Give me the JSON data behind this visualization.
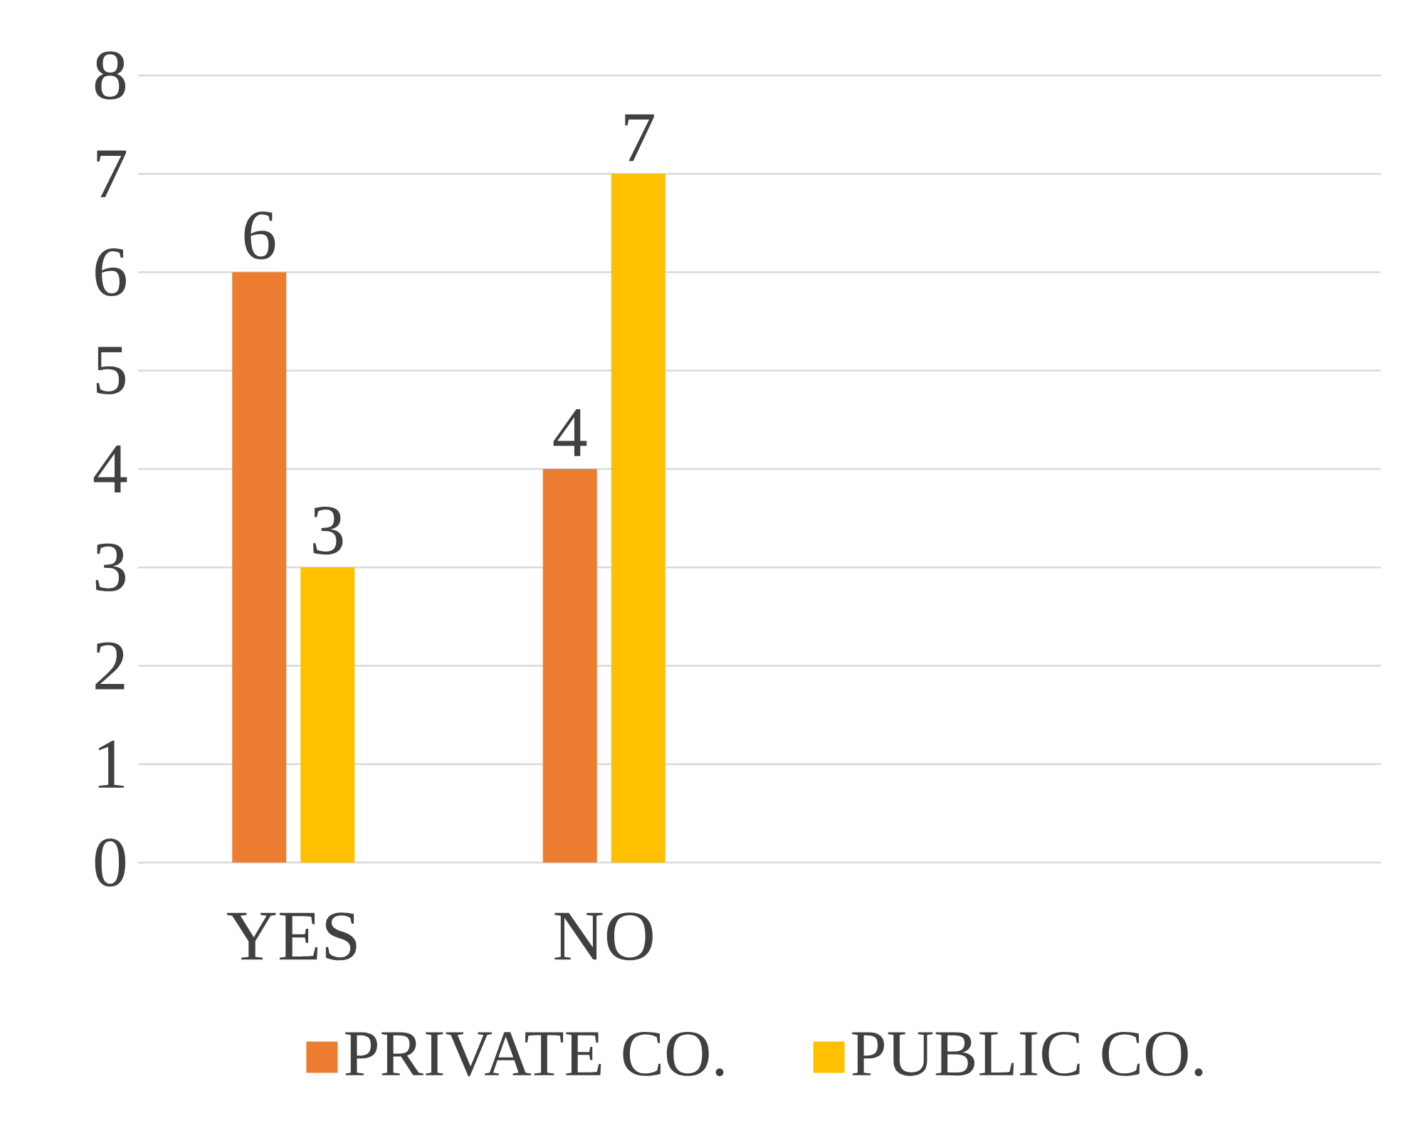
{
  "chart_data": {
    "type": "bar",
    "categories": [
      "YES",
      "NO",
      null,
      null
    ],
    "series": [
      {
        "name": "PRIVATE CO.",
        "color": "#ed7d31",
        "values": [
          6,
          4,
          null,
          null
        ]
      },
      {
        "name": "PUBLIC CO.",
        "color": "#ffc000",
        "values": [
          3,
          7,
          null,
          null
        ]
      }
    ],
    "ylim": [
      0,
      8
    ],
    "yticks": [
      0,
      1,
      2,
      3,
      4,
      5,
      6,
      7,
      8
    ],
    "grid": "y",
    "legend": "bottom",
    "data_labels": true
  }
}
